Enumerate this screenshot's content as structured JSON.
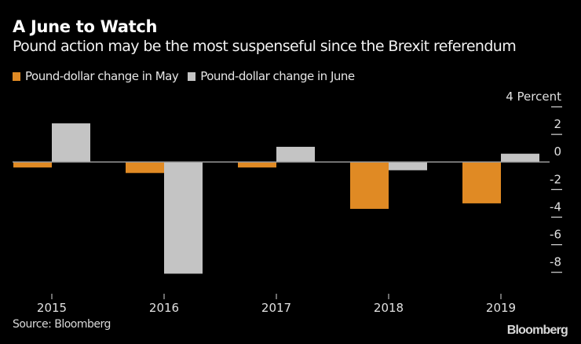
{
  "header": {
    "title": "A June to Watch",
    "subtitle": "Pound action may be the most suspenseful since the Brexit referendum"
  },
  "footer": {
    "source": "Source: Bloomberg",
    "logo": "Bloomberg"
  },
  "colors": {
    "background": "#000000",
    "may": "#E08A24",
    "june": "#C4C4C4",
    "axis": "#999999",
    "tick": "#d9d9d9"
  },
  "chart_data": {
    "type": "bar",
    "title": "A June to Watch",
    "subtitle": "Pound action may be the most suspenseful since the Brexit referendum",
    "xlabel": "",
    "ylabel": "Percent",
    "y_unit_label": "Percent",
    "categories": [
      "2015",
      "2016",
      "2017",
      "2018",
      "2019"
    ],
    "series": [
      {
        "name": "Pound-dollar change in May",
        "color": "#E08A24",
        "values": [
          -0.4,
          -0.8,
          -0.4,
          -3.4,
          -3.0
        ]
      },
      {
        "name": "Pound-dollar change in June",
        "color": "#C4C4C4",
        "values": [
          2.8,
          -8.1,
          1.1,
          -0.6,
          0.6
        ]
      }
    ],
    "ylim": [
      -8,
      4
    ],
    "yticks": [
      4,
      2,
      0,
      -2,
      -4,
      -6,
      -8
    ],
    "ytick_labels": [
      "4 Percent",
      "2",
      "0",
      "-2",
      "-4",
      "-6",
      "-8"
    ],
    "y_axis_side": "right",
    "grid": false,
    "legend": "top-left"
  }
}
